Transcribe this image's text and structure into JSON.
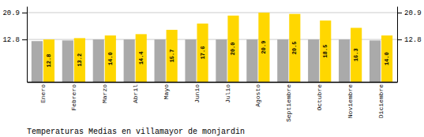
{
  "chart_data": {
    "type": "bar",
    "title": "Temperaturas Medias en villamayor de monjardin",
    "categories": [
      "Enero",
      "Febrero",
      "Marzo",
      "Abril",
      "Mayo",
      "Junio",
      "Julio",
      "Agosto",
      "Septiembre",
      "Octubre",
      "Noviembre",
      "Diciembre"
    ],
    "series": [
      {
        "color": "#AAAAAA",
        "values": [
          12.3,
          12.5,
          12.8,
          12.8,
          12.8,
          12.8,
          12.8,
          12.8,
          12.8,
          12.8,
          12.8,
          12.5
        ]
      },
      {
        "color": "#FFD700",
        "values": [
          12.8,
          13.2,
          14.0,
          14.4,
          15.7,
          17.6,
          20.0,
          20.9,
          20.5,
          18.5,
          16.3,
          14.0
        ],
        "data_labels": true,
        "value_labels": [
          "12.8",
          "13.2",
          "14.0",
          "14.4",
          "15.7",
          "17.6",
          "20.0",
          "20.9",
          "20.5",
          "18.5",
          "16.3",
          "14.0"
        ]
      }
    ],
    "ylim": [
      0,
      22.8
    ],
    "yticks": [
      12.8,
      20.9
    ],
    "y2lim": [
      0,
      22.8
    ],
    "y2ticks": [
      12.8,
      20.9
    ],
    "grid": true
  }
}
